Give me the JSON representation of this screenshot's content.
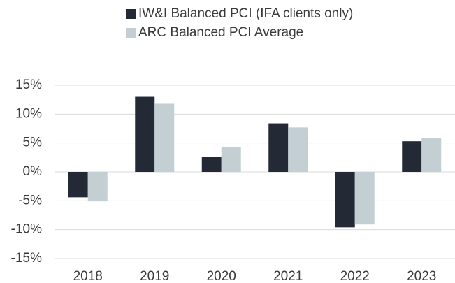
{
  "chart_data": {
    "type": "bar",
    "categories": [
      "2018",
      "2019",
      "2020",
      "2021",
      "2022",
      "2023"
    ],
    "series": [
      {
        "name": "IW&I Balanced PCI (IFA clients only)",
        "color": "#232a36",
        "values": [
          -4.4,
          13.0,
          2.6,
          8.4,
          -9.6,
          5.3
        ]
      },
      {
        "name": "ARC Balanced PCI Average",
        "color": "#c4cfd4",
        "values": [
          -5.1,
          11.8,
          4.3,
          7.7,
          -9.1,
          5.8
        ]
      }
    ],
    "ylim": [
      -15,
      15
    ],
    "yticks": [
      {
        "value": -15,
        "label": "-15%"
      },
      {
        "value": -10,
        "label": "-10%"
      },
      {
        "value": -5,
        "label": "-5%"
      },
      {
        "value": 0,
        "label": "0%"
      },
      {
        "value": 5,
        "label": "5%"
      },
      {
        "value": 10,
        "label": "10%"
      },
      {
        "value": 15,
        "label": "15%"
      }
    ],
    "grid": true,
    "legend": "top"
  }
}
